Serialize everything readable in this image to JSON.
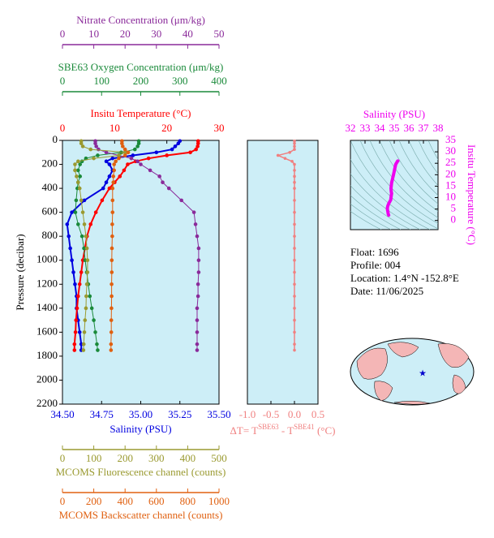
{
  "chart_data": [
    {
      "type": "profile",
      "ylabel": "Pressure (decibar)",
      "ylim": [
        0,
        2200
      ],
      "y_inverted": true,
      "yticks": [
        0,
        200,
        400,
        600,
        800,
        1000,
        1200,
        1400,
        1600,
        1800,
        2000,
        2200
      ],
      "background": "#cdeef7",
      "pressure": [
        5,
        25,
        50,
        75,
        100,
        125,
        150,
        175,
        200,
        250,
        300,
        350,
        400,
        500,
        600,
        700,
        800,
        900,
        1000,
        1100,
        1200,
        1300,
        1400,
        1500,
        1600,
        1700,
        1750
      ],
      "axes": [
        {
          "title": "Salinity (PSU)",
          "position": "bottom",
          "color": "#0000e0",
          "xlim": [
            34.5,
            35.5
          ],
          "xticks": [
            {
              "value": 34.5,
              "label": "34.50"
            },
            {
              "value": 34.75,
              "label": "34.75"
            },
            {
              "value": 35.0,
              "label": "35.00"
            },
            {
              "value": 35.25,
              "label": "35.25"
            },
            {
              "value": 35.5,
              "label": "35.50"
            }
          ],
          "values": [
            35.25,
            35.24,
            35.22,
            35.2,
            35.1,
            34.95,
            34.82,
            34.78,
            34.8,
            34.82,
            34.8,
            34.78,
            34.76,
            34.64,
            34.56,
            34.53,
            34.54,
            34.55,
            34.56,
            34.57,
            34.58,
            34.59,
            34.59,
            34.6,
            34.61,
            34.62,
            34.62
          ]
        },
        {
          "title": "Insitu Temperature (°C)",
          "position": "top",
          "color": "#ff0000",
          "xlim": [
            0,
            30
          ],
          "xticks": [
            0,
            10,
            20,
            30
          ],
          "values": [
            26.0,
            26.0,
            25.9,
            25.6,
            24.5,
            20.0,
            16.5,
            14.0,
            12.5,
            11.8,
            11.0,
            10.0,
            9.0,
            7.6,
            6.4,
            5.4,
            4.7,
            4.3,
            3.9,
            3.6,
            3.3,
            3.0,
            2.8,
            2.6,
            2.5,
            2.3,
            2.3
          ]
        },
        {
          "title": "SBE63 Oxygen Concentration (μm/kg)",
          "position": "top",
          "color": "#1a8a3a",
          "xlim": [
            0,
            400
          ],
          "xticks": [
            0,
            100,
            200,
            300,
            400
          ],
          "values": [
            195,
            195,
            192,
            185,
            150,
            90,
            60,
            50,
            45,
            40,
            45,
            40,
            38,
            35,
            33,
            40,
            50,
            55,
            58,
            62,
            66,
            70,
            75,
            80,
            84,
            88,
            90
          ]
        },
        {
          "title": "Nitrate Concentration (μm/kg)",
          "position": "top",
          "color": "#8a2a9a",
          "xlim": [
            0,
            50
          ],
          "xticks": [
            0,
            10,
            20,
            30,
            40,
            50
          ],
          "values": [
            10.5,
            10.5,
            10.8,
            11.5,
            14,
            18,
            22,
            24,
            25,
            28,
            31,
            32,
            34,
            38,
            42,
            42.5,
            43,
            43.5,
            43.5,
            43.5,
            43.3,
            43.3,
            43,
            43,
            43,
            43,
            43
          ]
        },
        {
          "title": "MCOMS Fluorescence channel (counts)",
          "position": "bottom",
          "color": "#9a9a30",
          "xlim": [
            0,
            500
          ],
          "xticks": [
            0,
            100,
            200,
            300,
            400,
            500
          ],
          "values": [
            60,
            60,
            65,
            90,
            200,
            180,
            100,
            50,
            40,
            40,
            45,
            50,
            55,
            60,
            65,
            70,
            75,
            78,
            80,
            80,
            78,
            76,
            75,
            72,
            70,
            68,
            67
          ]
        },
        {
          "title": "MCOMS Backscatter channel (counts)",
          "position": "bottom",
          "color": "#e06010",
          "xlim": [
            0,
            1000
          ],
          "xticks": [
            0,
            200,
            400,
            600,
            800,
            1000
          ],
          "values": [
            380,
            380,
            385,
            400,
            420,
            400,
            360,
            340,
            330,
            330,
            325,
            325,
            320,
            320,
            320,
            318,
            318,
            316,
            315,
            315,
            314,
            314,
            313,
            312,
            312,
            310,
            310
          ]
        }
      ]
    },
    {
      "type": "line",
      "xlabel_parts": [
        "ΔT= T",
        "SBE63",
        " - T",
        "SBE41",
        " (°C)"
      ],
      "color": "#f08080",
      "background": "#cdeef7",
      "xlim": [
        -1.0,
        0.5
      ],
      "xticks": [
        {
          "value": -1.0,
          "label": "-1.0"
        },
        {
          "value": -0.5,
          "label": "-0.5"
        },
        {
          "value": 0,
          "label": "0.0"
        },
        0.5
      ],
      "values": [
        0,
        0,
        0,
        0,
        -0.1,
        -0.35,
        -0.2,
        -0.05,
        0,
        0,
        0,
        0,
        0,
        0,
        0,
        0,
        0,
        0,
        0,
        0,
        0,
        0,
        0,
        0,
        0,
        0,
        0
      ]
    },
    {
      "type": "ts",
      "title": "Salinity (PSU)",
      "ylabel": "Insitu Temperature (°C)",
      "color": "#ee00ee",
      "background": "#cdeef7",
      "xlim": [
        32,
        38
      ],
      "xticks": [
        32,
        33,
        34,
        35,
        36,
        37,
        38
      ],
      "ylim": [
        -4,
        35
      ],
      "yticks": [
        0,
        5,
        10,
        15,
        20,
        25,
        30,
        35
      ]
    }
  ],
  "info": [
    "Float:  1696",
    "Profile:  004",
    "Location:  1.4°N  -152.8°E",
    "Date:  11/06/2025"
  ]
}
